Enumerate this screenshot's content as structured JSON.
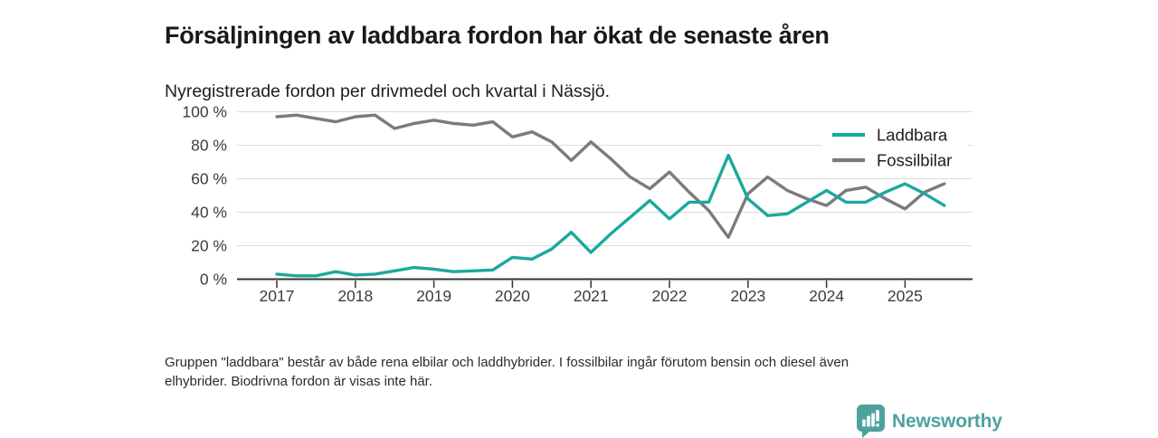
{
  "header": {
    "title": "Försäljningen av laddbara fordon har ökat de senaste åren",
    "subtitle": "Nyregistrerade fordon per drivmedel och kvartal i Nässjö."
  },
  "chart_data": {
    "type": "line",
    "title": "Försäljningen av laddbara fordon har ökat de senaste åren",
    "subtitle": "Nyregistrerade fordon per drivmedel och kvartal i Nässjö.",
    "xlabel": "",
    "ylabel": "",
    "ylim": [
      0,
      100
    ],
    "grid": true,
    "legend_position": "top-right",
    "x": [
      "2017Q1",
      "2017Q2",
      "2017Q3",
      "2017Q4",
      "2018Q1",
      "2018Q2",
      "2018Q3",
      "2018Q4",
      "2019Q1",
      "2019Q2",
      "2019Q3",
      "2019Q4",
      "2020Q1",
      "2020Q2",
      "2020Q3",
      "2020Q4",
      "2021Q1",
      "2021Q2",
      "2021Q3",
      "2021Q4",
      "2022Q1",
      "2022Q2",
      "2022Q3",
      "2022Q4",
      "2023Q1",
      "2023Q2",
      "2023Q3",
      "2023Q4",
      "2024Q1",
      "2024Q2",
      "2024Q3",
      "2024Q4",
      "2025Q1",
      "2025Q2",
      "2025Q3"
    ],
    "series": [
      {
        "name": "Laddbara",
        "color": "#1ba99c",
        "values": [
          3,
          2,
          2,
          4.5,
          2.5,
          3,
          5,
          7,
          6,
          4.5,
          5,
          5.5,
          13,
          12,
          18,
          28,
          16,
          27,
          37,
          47,
          36,
          46,
          46,
          74,
          48,
          38,
          39,
          46,
          53,
          46,
          46,
          52,
          57,
          51,
          44
        ]
      },
      {
        "name": "Fossilbilar",
        "color": "#7b7b7b",
        "values": [
          97,
          98,
          96,
          94,
          97,
          98,
          90,
          93,
          95,
          93,
          92,
          94,
          85,
          88,
          82,
          71,
          82,
          72,
          61,
          54,
          64,
          52,
          41,
          25,
          51,
          61,
          53,
          48,
          44,
          53,
          55,
          48,
          42,
          52,
          57
        ]
      }
    ],
    "y_ticks": [
      {
        "value": 0,
        "label": "0 %"
      },
      {
        "value": 20,
        "label": "20 %"
      },
      {
        "value": 40,
        "label": "40 %"
      },
      {
        "value": 60,
        "label": "60 %"
      },
      {
        "value": 80,
        "label": "80 %"
      },
      {
        "value": 100,
        "label": "100 %"
      }
    ],
    "x_ticks": [
      {
        "q": 0,
        "label": "2017"
      },
      {
        "q": 4,
        "label": "2018"
      },
      {
        "q": 8,
        "label": "2019"
      },
      {
        "q": 12,
        "label": "2020"
      },
      {
        "q": 16,
        "label": "2021"
      },
      {
        "q": 20,
        "label": "2022"
      },
      {
        "q": 24,
        "label": "2023"
      },
      {
        "q": 28,
        "label": "2024"
      },
      {
        "q": 32,
        "label": "2025"
      }
    ],
    "axis_color": "#333333",
    "grid_color": "#dcdcdc"
  },
  "footnote": {
    "line1": "Gruppen \"laddbara\" består av både rena elbilar och laddhybrider. I fossilbilar ingår förutom bensin och diesel även",
    "line2": "elhybrider. Biodrivna fordon är visas inte här."
  },
  "footer": {
    "brand": "Newsworthy",
    "brand_color": "#4da39c"
  }
}
